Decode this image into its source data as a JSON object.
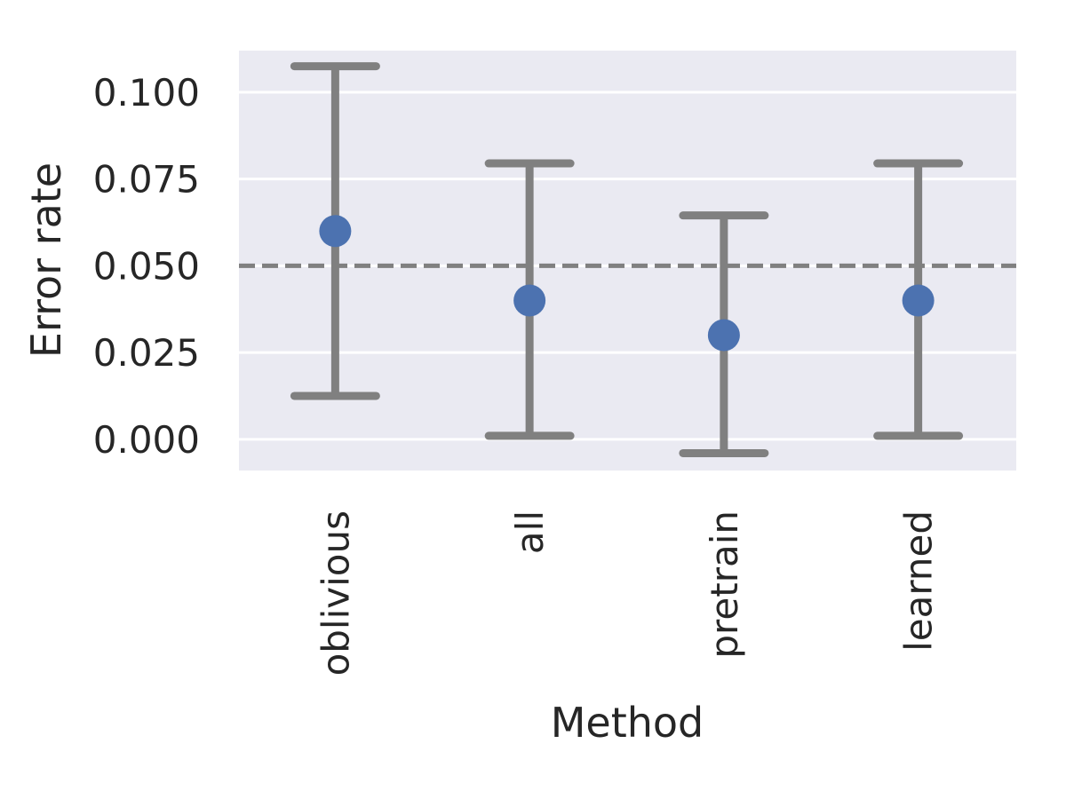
{
  "chart_data": {
    "type": "scatter",
    "xlabel": "Method",
    "ylabel": "Error rate",
    "categories": [
      "oblivious",
      "all",
      "pretrain",
      "learned"
    ],
    "values": [
      0.06,
      0.04,
      0.03,
      0.04
    ],
    "error_low": [
      0.0125,
      0.001,
      -0.004,
      0.001
    ],
    "error_high": [
      0.1075,
      0.0795,
      0.0645,
      0.0795
    ],
    "ylim": [
      -0.009,
      0.112
    ],
    "yticks": [
      0.0,
      0.025,
      0.05,
      0.075,
      0.1
    ],
    "ytick_labels": [
      "0.000",
      "0.025",
      "0.050",
      "0.075",
      "0.100"
    ],
    "reference_line": 0.05,
    "grid": true,
    "colors": {
      "point": "#4c72b0",
      "errorbar": "#808080",
      "reference": "#808080",
      "plot_background": "#eaeaf2",
      "grid": "#ffffff"
    }
  }
}
